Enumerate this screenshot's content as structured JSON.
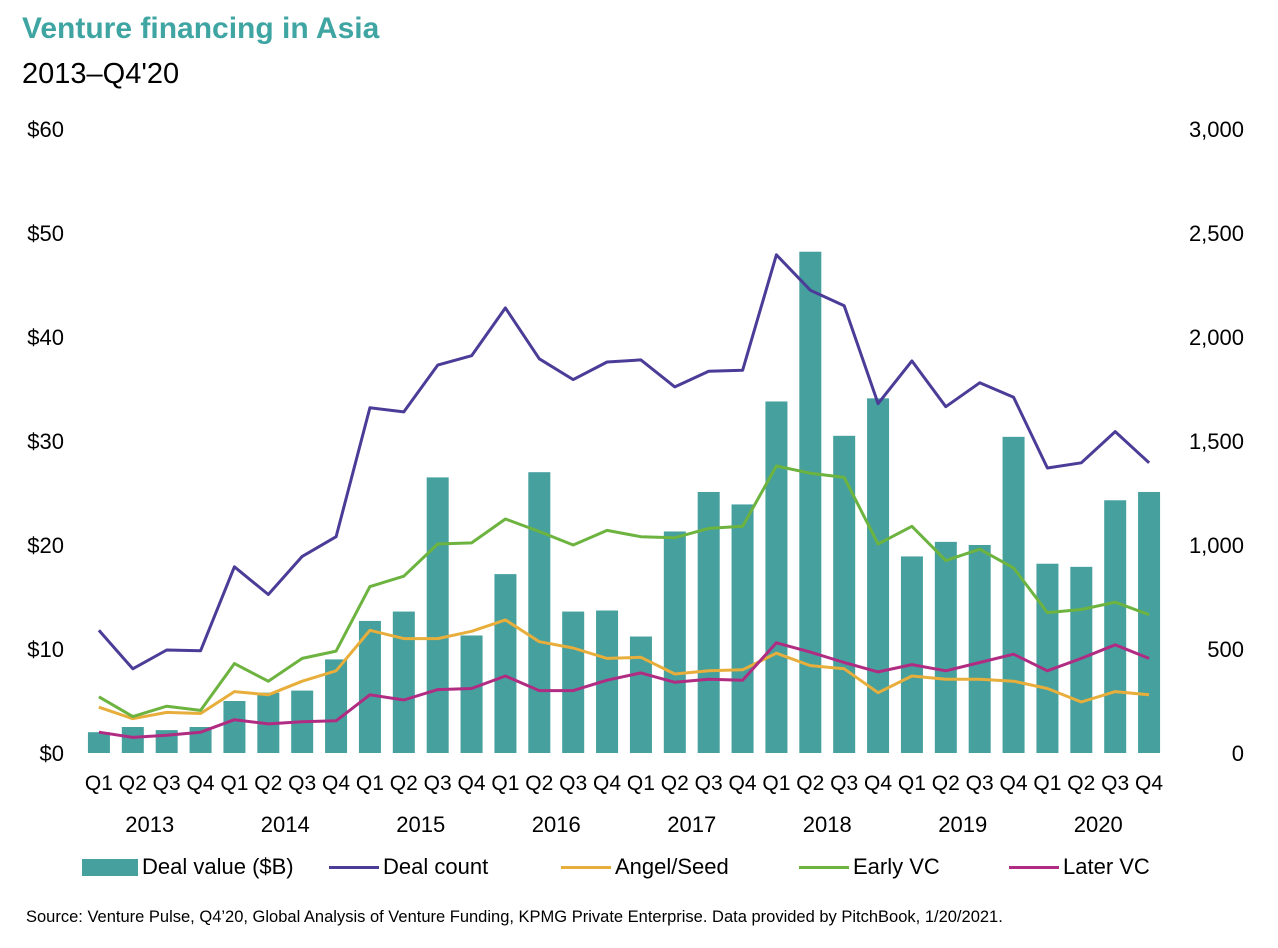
{
  "header": {
    "title": "Venture financing in Asia",
    "subtitle": "2013–Q4'20"
  },
  "source": "Source: Venture Pulse, Q4’20, Global Analysis of Venture Funding, KPMG Private Enterprise. Data provided by PitchBook, 1/20/2021.",
  "legend": {
    "deal_value": "Deal value ($B)",
    "deal_count": "Deal count",
    "angel_seed": "Angel/Seed",
    "early_vc": "Early VC",
    "later_vc": "Later VC"
  },
  "colors": {
    "deal_value": "#45A09E",
    "deal_count": "#4B3C98",
    "angel_seed": "#E8AE3C",
    "early_vc": "#6DB33F",
    "later_vc": "#B02C82",
    "title": "#3FA5A2"
  },
  "chart_data": {
    "type": "bar",
    "quarters": [
      "Q1",
      "Q2",
      "Q3",
      "Q4",
      "Q1",
      "Q2",
      "Q3",
      "Q4",
      "Q1",
      "Q2",
      "Q3",
      "Q4",
      "Q1",
      "Q2",
      "Q3",
      "Q4",
      "Q1",
      "Q2",
      "Q3",
      "Q4",
      "Q1",
      "Q2",
      "Q3",
      "Q4",
      "Q1",
      "Q2",
      "Q3",
      "Q4",
      "Q1",
      "Q2",
      "Q3",
      "Q4"
    ],
    "years": [
      "2013",
      "2014",
      "2015",
      "2016",
      "2017",
      "2018",
      "2019",
      "2020"
    ],
    "left_axis": {
      "ticks": [
        "$0",
        "$10",
        "$20",
        "$30",
        "$40",
        "$50",
        "$60"
      ],
      "range": [
        0,
        60
      ]
    },
    "right_axis": {
      "ticks": [
        "0",
        "500",
        "1,000",
        "1,500",
        "2,000",
        "2,500",
        "3,000"
      ],
      "range": [
        0,
        3000
      ]
    },
    "series": [
      {
        "name": "Deal value ($B)",
        "key": "deal_value",
        "type": "bar",
        "axis": "left",
        "values": [
          2.0,
          2.5,
          2.2,
          2.5,
          5.0,
          5.8,
          6.0,
          9.0,
          12.7,
          13.6,
          26.5,
          11.3,
          17.2,
          27.0,
          13.6,
          13.7,
          11.2,
          21.3,
          25.1,
          23.9,
          33.8,
          48.2,
          30.5,
          34.1,
          18.9,
          20.3,
          20.0,
          30.4,
          18.2,
          17.9,
          24.3,
          25.1
        ]
      },
      {
        "name": "Deal count",
        "key": "deal_count",
        "type": "line",
        "axis": "right",
        "values": [
          590,
          405,
          495,
          492,
          895,
          762,
          945,
          1040,
          1660,
          1640,
          1865,
          1910,
          2140,
          1895,
          1795,
          1880,
          1890,
          1760,
          1835,
          1840,
          2395,
          2225,
          2150,
          1680,
          1885,
          1665,
          1780,
          1710,
          1370,
          1395,
          1545,
          1395
        ]
      },
      {
        "name": "Angel/Seed",
        "key": "angel_seed",
        "type": "line",
        "axis": "right",
        "values": [
          220,
          165,
          195,
          190,
          295,
          280,
          345,
          395,
          590,
          550,
          550,
          585,
          640,
          535,
          505,
          455,
          460,
          380,
          395,
          400,
          480,
          420,
          405,
          290,
          370,
          355,
          355,
          345,
          310,
          245,
          295,
          280
        ]
      },
      {
        "name": "Early VC",
        "key": "early_vc",
        "type": "line",
        "axis": "right",
        "values": [
          270,
          175,
          225,
          205,
          430,
          345,
          455,
          490,
          800,
          850,
          1005,
          1010,
          1125,
          1065,
          1000,
          1070,
          1040,
          1035,
          1080,
          1090,
          1380,
          1345,
          1325,
          1005,
          1090,
          925,
          980,
          890,
          675,
          690,
          725,
          665
        ]
      },
      {
        "name": "Later VC",
        "key": "later_vc",
        "type": "line",
        "axis": "right",
        "values": [
          100,
          75,
          85,
          100,
          160,
          140,
          150,
          155,
          280,
          255,
          305,
          310,
          370,
          300,
          300,
          350,
          385,
          340,
          355,
          350,
          530,
          485,
          435,
          390,
          425,
          395,
          435,
          475,
          395,
          455,
          520,
          455
        ]
      }
    ]
  }
}
